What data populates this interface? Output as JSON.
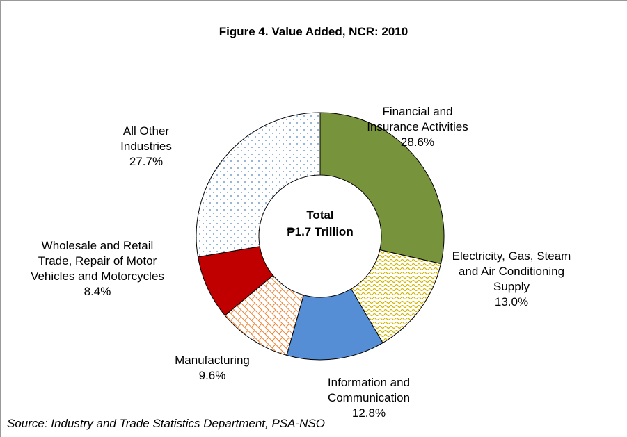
{
  "chart_data": {
    "type": "donut",
    "title": "Figure 4. Value Added, NCR: 2010",
    "categories": [
      "Financial and Insurance Activities",
      "Electricity, Gas, Steam and Air Conditioning Supply",
      "Information and Communication",
      "Manufacturing",
      "Wholesale and Retail Trade, Repair of Motor Vehicles and Motorcycles",
      "All Other Industries"
    ],
    "values": [
      28.6,
      13.0,
      12.8,
      9.6,
      8.4,
      27.7
    ],
    "value_labels": [
      "28.6%",
      "13.0%",
      "12.8%",
      "9.6%",
      "8.4%",
      "27.7%"
    ],
    "colors": [
      "#77933c",
      "#d4b400",
      "#558ed5",
      "#f08030",
      "#c00000",
      "#4f81bd"
    ],
    "patterns": [
      null,
      "waves",
      null,
      "bricks",
      null,
      "dots"
    ],
    "center_label": [
      "Total",
      "₱1.7 Trillion"
    ],
    "source": "Source: Industry and Trade Statistics Department, PSA-NSO"
  }
}
